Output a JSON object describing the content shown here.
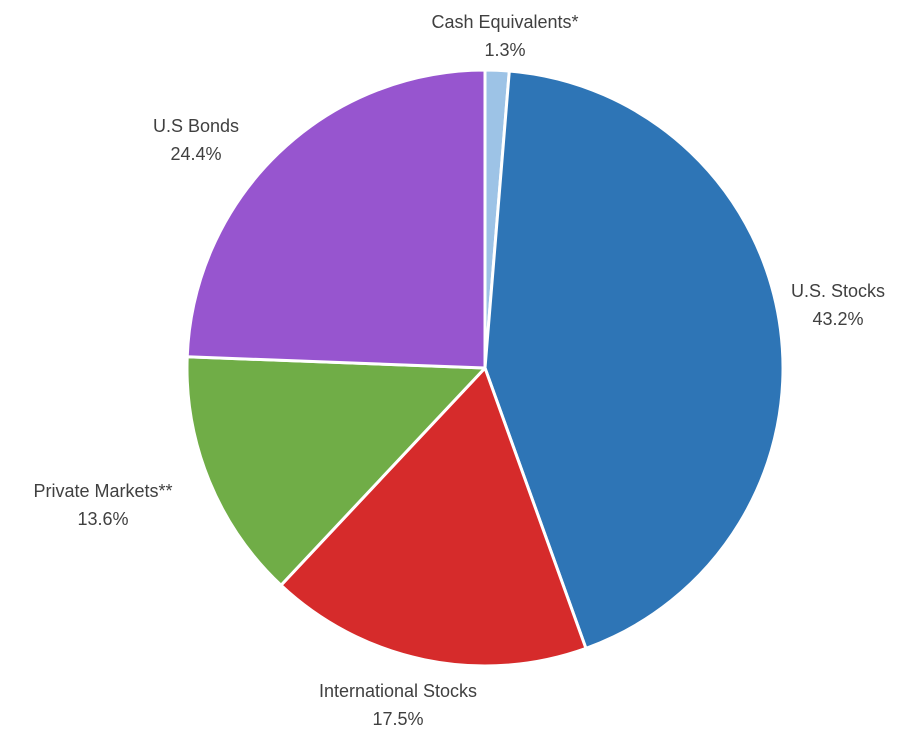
{
  "chart_data": {
    "type": "pie",
    "title": "",
    "unit": "%",
    "start_angle_deg": 0,
    "direction": "clockwise",
    "slices": [
      {
        "label": "Cash Equivalents*",
        "value": 1.3,
        "value_label": "1.3%",
        "color": "#9DC3E6"
      },
      {
        "label": "U.S. Stocks",
        "value": 43.2,
        "value_label": "43.2%",
        "color": "#2E75B6"
      },
      {
        "label": "International Stocks",
        "value": 17.5,
        "value_label": "17.5%",
        "color": "#D62B2B"
      },
      {
        "label": "Private Markets**",
        "value": 13.6,
        "value_label": "13.6%",
        "color": "#70AD47"
      },
      {
        "label": "U.S Bonds",
        "value": 24.4,
        "value_label": "24.4%",
        "color": "#9755CF"
      }
    ],
    "legend": "none",
    "slice_border_color": "#ffffff"
  }
}
